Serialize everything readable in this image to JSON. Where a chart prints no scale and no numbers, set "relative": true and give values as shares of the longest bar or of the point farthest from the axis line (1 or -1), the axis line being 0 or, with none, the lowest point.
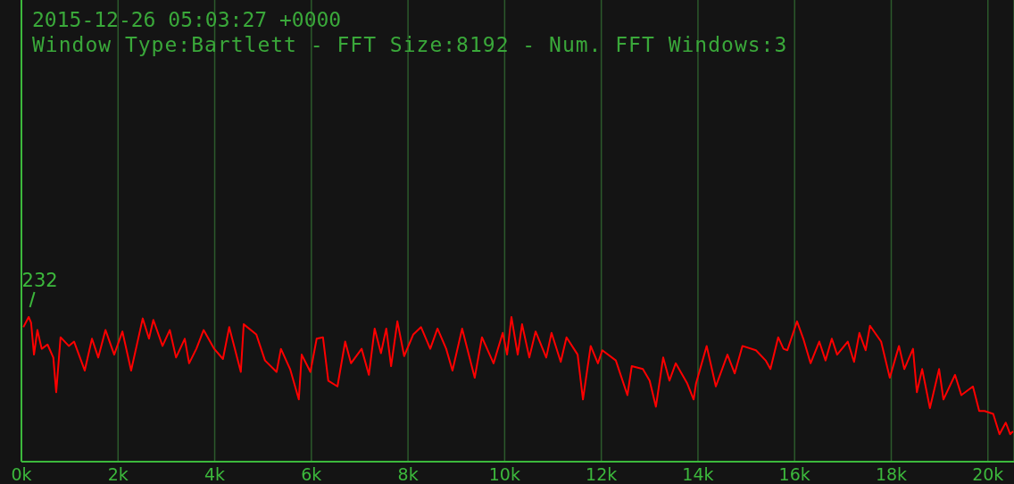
{
  "chart_data": {
    "type": "line",
    "title": "2015-12-26 05:03:27 +0000",
    "subtitle": "Window Type:Bartlett - FFT Size:8192 - Num. FFT Windows:3",
    "relative": true,
    "marker": "none",
    "line_style": "solid",
    "grid": "x",
    "legend": false,
    "tick_labels": "x",
    "xlim": [
      0,
      20540
    ],
    "xticks": [
      {
        "value": 0,
        "label": "0k"
      },
      {
        "value": 2000,
        "label": "2k"
      },
      {
        "value": 4000,
        "label": "4k"
      },
      {
        "value": 6000,
        "label": "6k"
      },
      {
        "value": 8000,
        "label": "8k"
      },
      {
        "value": 10000,
        "label": "10k"
      },
      {
        "value": 12000,
        "label": "12k"
      },
      {
        "value": 14000,
        "label": "14k"
      },
      {
        "value": 16000,
        "label": "16k"
      },
      {
        "value": 18000,
        "label": "18k"
      },
      {
        "value": 20000,
        "label": "20k"
      }
    ],
    "annotations": [
      {
        "text": "232",
        "x": 232,
        "y": 1
      }
    ],
    "x": [
      40,
      150,
      200,
      260,
      330,
      420,
      540,
      660,
      720,
      810,
      980,
      1090,
      1310,
      1460,
      1590,
      1740,
      1920,
      2090,
      2270,
      2510,
      2640,
      2730,
      2920,
      3070,
      3200,
      3380,
      3470,
      3620,
      3770,
      3990,
      4170,
      4300,
      4540,
      4600,
      4860,
      5040,
      5280,
      5370,
      5560,
      5740,
      5800,
      5980,
      6110,
      6240,
      6350,
      6540,
      6700,
      6820,
      7040,
      7190,
      7310,
      7440,
      7550,
      7650,
      7780,
      7920,
      8110,
      8270,
      8460,
      8610,
      8790,
      8920,
      9120,
      9380,
      9530,
      9770,
      9960,
      10050,
      10140,
      10270,
      10360,
      10510,
      10640,
      10860,
      10970,
      11160,
      11280,
      11510,
      11620,
      11780,
      11930,
      12020,
      12300,
      12540,
      12630,
      12860,
      13000,
      13130,
      13280,
      13410,
      13540,
      13780,
      13910,
      13960,
      14180,
      14370,
      14610,
      14760,
      14920,
      15200,
      15400,
      15500,
      15660,
      15770,
      15850,
      16050,
      16180,
      16330,
      16510,
      16640,
      16770,
      16880,
      17100,
      17230,
      17340,
      17470,
      17560,
      17790,
      17970,
      18160,
      18270,
      18450,
      18530,
      18640,
      18800,
      18990,
      19080,
      19320,
      19450,
      19690,
      19820,
      19930,
      20110,
      20240,
      20370,
      20460,
      20520
    ],
    "series": [
      {
        "color": "#ff0000",
        "values": [
          0.93,
          1.0,
          0.96,
          0.74,
          0.91,
          0.78,
          0.81,
          0.72,
          0.48,
          0.86,
          0.8,
          0.83,
          0.63,
          0.85,
          0.72,
          0.91,
          0.74,
          0.9,
          0.63,
          0.99,
          0.85,
          0.98,
          0.8,
          0.91,
          0.72,
          0.85,
          0.68,
          0.78,
          0.91,
          0.78,
          0.71,
          0.93,
          0.62,
          0.95,
          0.88,
          0.7,
          0.62,
          0.78,
          0.64,
          0.43,
          0.74,
          0.62,
          0.85,
          0.86,
          0.56,
          0.52,
          0.83,
          0.68,
          0.78,
          0.6,
          0.92,
          0.75,
          0.92,
          0.66,
          0.97,
          0.73,
          0.88,
          0.93,
          0.78,
          0.92,
          0.78,
          0.63,
          0.92,
          0.58,
          0.86,
          0.68,
          0.89,
          0.74,
          1.0,
          0.74,
          0.95,
          0.72,
          0.9,
          0.72,
          0.89,
          0.69,
          0.86,
          0.74,
          0.43,
          0.8,
          0.68,
          0.77,
          0.7,
          0.46,
          0.66,
          0.64,
          0.56,
          0.38,
          0.72,
          0.56,
          0.68,
          0.54,
          0.43,
          0.54,
          0.8,
          0.52,
          0.74,
          0.61,
          0.8,
          0.77,
          0.7,
          0.64,
          0.86,
          0.78,
          0.77,
          0.97,
          0.85,
          0.68,
          0.83,
          0.7,
          0.85,
          0.74,
          0.83,
          0.69,
          0.89,
          0.77,
          0.94,
          0.83,
          0.58,
          0.8,
          0.64,
          0.78,
          0.48,
          0.64,
          0.37,
          0.64,
          0.43,
          0.6,
          0.46,
          0.52,
          0.35,
          0.35,
          0.33,
          0.19,
          0.27,
          0.19,
          0.21
        ]
      }
    ]
  }
}
